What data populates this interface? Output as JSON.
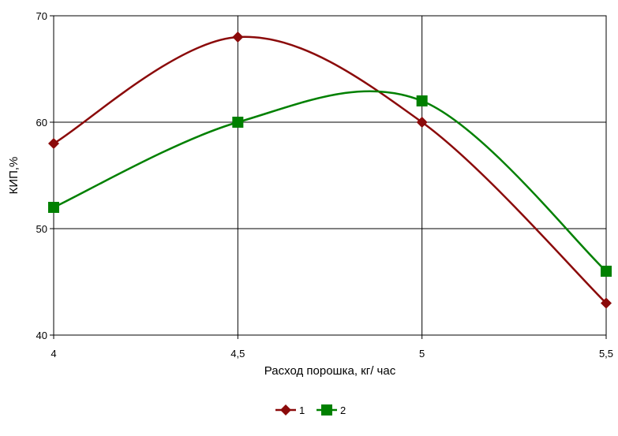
{
  "chart_data": {
    "type": "line",
    "xlabel": "Расход  порошка,  кг/ час",
    "ylabel": "КИП,%",
    "x": [
      4,
      4.5,
      5,
      5.5
    ],
    "x_tick_labels": [
      "4",
      "4,5",
      "5",
      "5,5"
    ],
    "y_ticks": [
      40,
      50,
      60,
      70
    ],
    "y_tick_labels": [
      "40",
      "50",
      "60",
      "70"
    ],
    "xlim": [
      4,
      5.5
    ],
    "ylim": [
      40,
      70
    ],
    "grid": true,
    "smooth": true,
    "legend_position": "bottom-center",
    "series": [
      {
        "name": "1",
        "values": [
          58,
          68,
          60,
          43
        ],
        "color": "#8b0a0a",
        "marker": "diamond"
      },
      {
        "name": "2",
        "values": [
          52,
          60,
          62,
          46
        ],
        "color": "#008000",
        "marker": "square"
      }
    ]
  }
}
